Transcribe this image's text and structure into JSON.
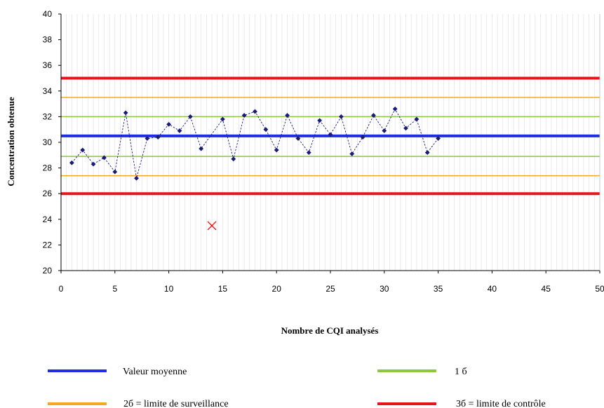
{
  "chart_data": {
    "type": "line",
    "title": "",
    "xlabel": "Nombre de CQI analysés",
    "ylabel": "Concentration obtenue",
    "xlim": [
      0,
      50
    ],
    "ylim": [
      20,
      40
    ],
    "xticks": [
      0,
      5,
      10,
      15,
      20,
      25,
      30,
      35,
      40,
      45,
      50
    ],
    "yticks": [
      20,
      22,
      24,
      26,
      28,
      30,
      32,
      34,
      36,
      38,
      40
    ],
    "grid": "vertical minor gridlines",
    "legend_position": "bottom",
    "series": [
      {
        "kind": "data-points",
        "marker": "diamond",
        "line_style": "dashed",
        "color": "#1a1a7a",
        "x": [
          1,
          2,
          3,
          4,
          5,
          6,
          7,
          8,
          9,
          10,
          11,
          12,
          13,
          15,
          16,
          17,
          18,
          19,
          20,
          21,
          22,
          23,
          24,
          25,
          26,
          27,
          28,
          29,
          30,
          31,
          32,
          33,
          34,
          35
        ],
        "y": [
          28.4,
          29.4,
          28.3,
          28.8,
          27.7,
          32.3,
          27.2,
          30.3,
          30.4,
          31.4,
          30.9,
          32.0,
          29.5,
          31.8,
          28.7,
          32.1,
          32.4,
          31.0,
          29.4,
          32.1,
          30.3,
          29.2,
          31.7,
          30.6,
          32.0,
          29.1,
          30.4,
          32.1,
          30.9,
          32.6,
          31.1,
          31.8,
          29.2,
          30.3
        ]
      }
    ],
    "outlier": {
      "x": 14,
      "y": 23.5,
      "marker": "x",
      "color": "#ff0000"
    },
    "reference_lines": [
      {
        "name": "Valeur moyenne",
        "value": 30.5,
        "color": "#1f2fe0",
        "width": 4
      },
      {
        "name": "1 σ (upper)",
        "value": 32.0,
        "color": "#8dc63f",
        "width": 1.5
      },
      {
        "name": "1 σ (lower)",
        "value": 28.9,
        "color": "#8dc63f",
        "width": 1.5
      },
      {
        "name": "2σ (upper)",
        "value": 33.5,
        "color": "#f5a623",
        "width": 1.5
      },
      {
        "name": "2σ (lower)",
        "value": 27.4,
        "color": "#f5a623",
        "width": 1.5
      },
      {
        "name": "3σ (upper)",
        "value": 35.0,
        "color": "#e8141b",
        "width": 4
      },
      {
        "name": "3σ (lower)",
        "value": 26.0,
        "color": "#e8141b",
        "width": 4
      }
    ],
    "legend": [
      {
        "label": "Valeur moyenne",
        "color": "#1f2fe0"
      },
      {
        "label": "1 б",
        "color": "#8dc63f"
      },
      {
        "label": "2б = limite de surveillance",
        "color": "#f5a623"
      },
      {
        "label": "3б = limite de contrôle",
        "color": "#e8141b"
      }
    ]
  }
}
